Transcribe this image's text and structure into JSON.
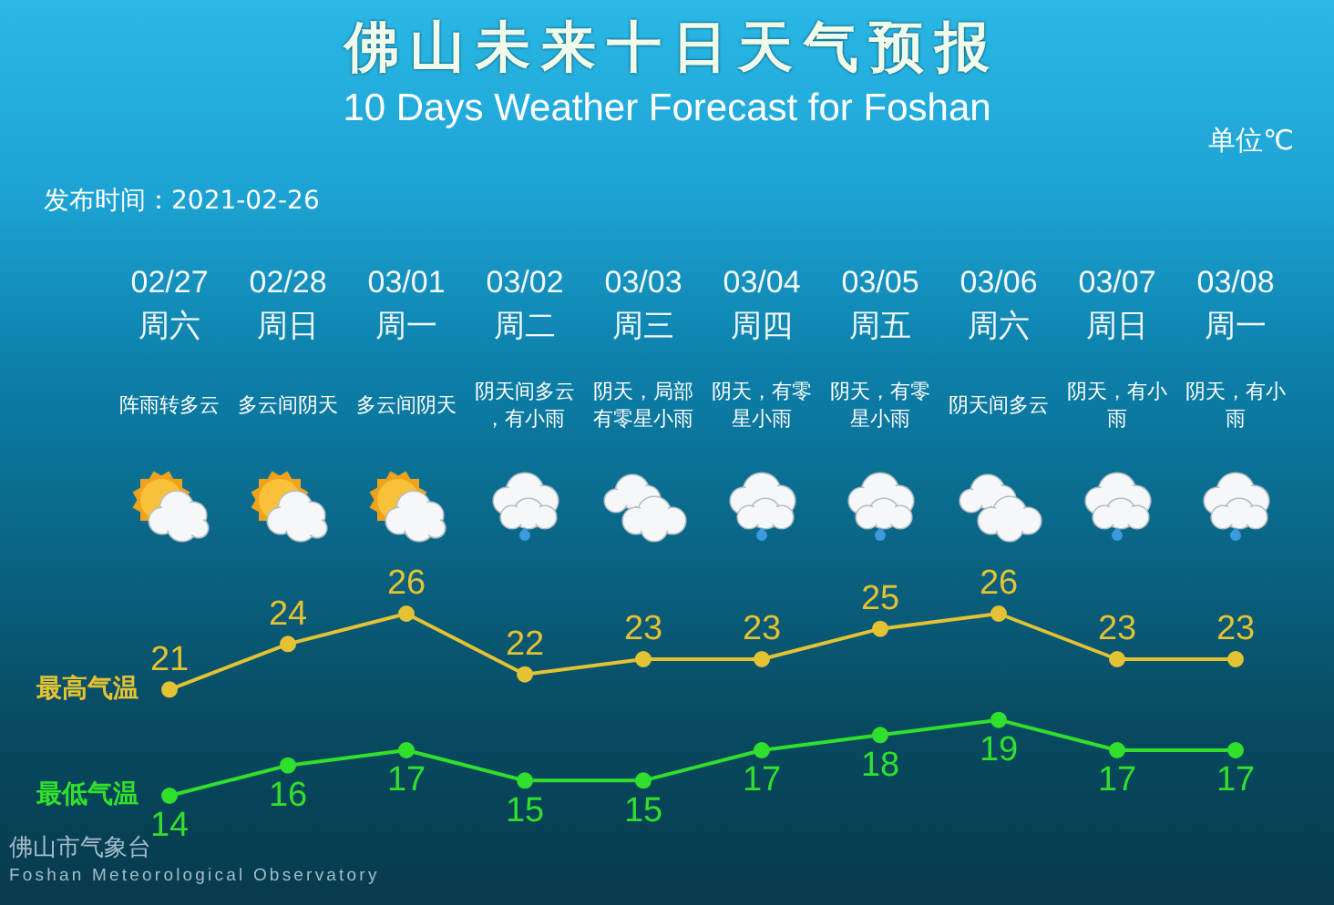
{
  "chart_data": {
    "type": "line",
    "title": "佛山未来十日天气预报",
    "subtitle": "10 Days Weather Forecast for Foshan",
    "categories": [
      "02/27\n周六",
      "02/28\n周日",
      "03/01\n周一",
      "03/02\n周二",
      "03/03\n周三",
      "03/04\n周四",
      "03/05\n周五",
      "03/06\n周六",
      "03/07\n周日",
      "03/08\n周一"
    ],
    "series": [
      {
        "name": "最高气温",
        "color": "#e3c234",
        "values": [
          21,
          24,
          26,
          22,
          23,
          23,
          25,
          26,
          23,
          23
        ]
      },
      {
        "name": "最低气温",
        "color": "#30e02c",
        "values": [
          14,
          16,
          17,
          15,
          15,
          17,
          18,
          19,
          17,
          17
        ]
      }
    ],
    "data_labels": true,
    "marker": "circle",
    "line_style": "solid",
    "tick_labels": "x",
    "annotations": [
      "单位℃",
      "发布时间：2021-02-26",
      "阵雨转多云",
      "多云间阴天",
      "多云间阴天",
      "阴天间多云，有小雨",
      "阴天，局部有零星小雨",
      "阴天，有零星小雨",
      "阴天，有零星小雨",
      "阴天间多云",
      "阴天，有小雨",
      "阴天，有小雨",
      "佛山市气象台",
      "Foshan Meteorological Observatory"
    ]
  }
}
